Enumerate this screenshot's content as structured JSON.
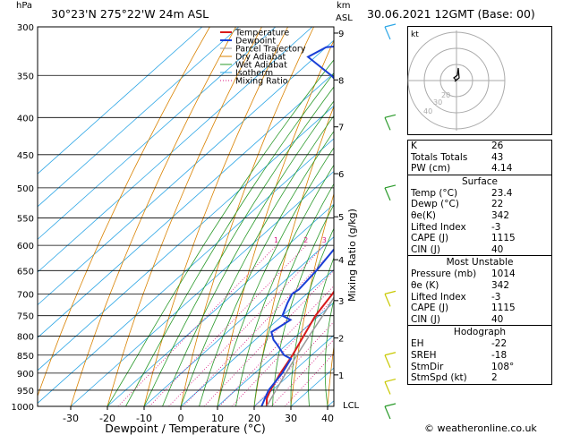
{
  "header": {
    "hpa_label": "hPa",
    "location": "30°23'N 275°22'W 24m ASL",
    "km_label": "km",
    "asl_label": "ASL",
    "datetime": "30.06.2021 12GMT (Base: 00)"
  },
  "chart_data": {
    "type": "line",
    "title": "Skew-T log-P diagram",
    "xlabel": "Dewpoint / Temperature (°C)",
    "ylabel": "hPa",
    "x_ticks": [
      -30,
      -20,
      -10,
      0,
      10,
      20,
      30,
      40
    ],
    "pressure_levels": [
      300,
      350,
      400,
      450,
      500,
      550,
      600,
      650,
      700,
      750,
      800,
      850,
      900,
      950,
      1000
    ],
    "km_ticks": [
      {
        "km": "1",
        "p": 905
      },
      {
        "km": "2",
        "p": 805
      },
      {
        "km": "3",
        "p": 715
      },
      {
        "km": "4",
        "p": 628
      },
      {
        "km": "5",
        "p": 548
      },
      {
        "km": "6",
        "p": 478
      },
      {
        "km": "7",
        "p": 412
      },
      {
        "km": "8",
        "p": 355
      },
      {
        "km": "9",
        "p": 306
      }
    ],
    "lcl_label": "LCL",
    "lcl_pressure": 1000,
    "mixing_ratio_label": "Mixing Ratio (g/kg)",
    "mixing_ratios": [
      "1",
      "2",
      "3",
      "4",
      "6",
      "8",
      "10",
      "15",
      "20",
      "25"
    ],
    "legend": [
      "Temperature",
      "Dewpoint",
      "Parcel Trajectory",
      "Dry Adiabat",
      "Wet Adiabat",
      "Isotherm",
      "Mixing Ratio"
    ],
    "legend_colors": [
      "#d81b1b",
      "#1a3fd6",
      "#999999",
      "#d98200",
      "#2a9a2a",
      "#2fa7e6",
      "#d8147e"
    ],
    "series": [
      {
        "name": "Temperature",
        "color": "#d81b1b",
        "points": [
          [
            1000,
            23.4
          ],
          [
            975,
            21.0
          ],
          [
            950,
            19.5
          ],
          [
            900,
            17.0
          ],
          [
            850,
            14.8
          ],
          [
            800,
            12.0
          ],
          [
            750,
            9.0
          ],
          [
            700,
            7.0
          ],
          [
            650,
            4.0
          ],
          [
            600,
            1.0
          ],
          [
            550,
            -3.5
          ],
          [
            500,
            -7.5
          ],
          [
            450,
            -12.0
          ],
          [
            400,
            -18.5
          ],
          [
            350,
            -25.5
          ],
          [
            300,
            -33.5
          ]
        ]
      },
      {
        "name": "Dewpoint",
        "color": "#1a3fd6",
        "points": [
          [
            1000,
            22.0
          ],
          [
            975,
            20.5
          ],
          [
            950,
            19.0
          ],
          [
            900,
            17.5
          ],
          [
            860,
            15.5
          ],
          [
            850,
            12.5
          ],
          [
            820,
            7.0
          ],
          [
            810,
            5.0
          ],
          [
            790,
            2.0
          ],
          [
            760,
            3.5
          ],
          [
            750,
            0.0
          ],
          [
            720,
            -2.5
          ],
          [
            700,
            -4.0
          ],
          [
            690,
            -3.5
          ],
          [
            650,
            -4.5
          ],
          [
            600,
            -6.5
          ],
          [
            550,
            -11.0
          ],
          [
            500,
            -16.0
          ],
          [
            450,
            -22.0
          ],
          [
            400,
            -29.0
          ],
          [
            380,
            -33.0
          ],
          [
            370,
            -50.0
          ],
          [
            350,
            -60.0
          ],
          [
            330,
            -72.0
          ],
          [
            320,
            -70.0
          ],
          [
            315,
            -55.0
          ],
          [
            300,
            -62.0
          ]
        ]
      },
      {
        "name": "Parcel Trajectory",
        "color": "#999999",
        "points": [
          [
            1000,
            23.4
          ],
          [
            950,
            21.0
          ],
          [
            900,
            18.5
          ],
          [
            850,
            16.0
          ],
          [
            800,
            13.5
          ],
          [
            750,
            11.0
          ],
          [
            700,
            8.0
          ],
          [
            650,
            5.0
          ],
          [
            600,
            2.0
          ],
          [
            550,
            -1.5
          ],
          [
            500,
            -5.0
          ],
          [
            450,
            -9.5
          ],
          [
            400,
            -15.0
          ],
          [
            350,
            -22.0
          ],
          [
            300,
            -30.0
          ]
        ]
      }
    ],
    "wind_barb_colors": [
      "#2fa7e6",
      "#2a9a2a",
      "#c8c800"
    ]
  },
  "hodograph": {
    "unit_label": "kt",
    "ring_labels": [
      "40",
      "30",
      "20"
    ]
  },
  "indices": {
    "rows": [
      [
        "K",
        "26"
      ],
      [
        "Totals Totals",
        "43"
      ],
      [
        "PW (cm)",
        "4.14"
      ]
    ]
  },
  "surface": {
    "title": "Surface",
    "rows": [
      [
        "Temp (°C)",
        "23.4"
      ],
      [
        "Dewp (°C)",
        "22"
      ],
      [
        "θe(K)",
        "342"
      ],
      [
        "Lifted Index",
        "-3"
      ],
      [
        "CAPE (J)",
        "1115"
      ],
      [
        "CIN (J)",
        "40"
      ]
    ]
  },
  "most_unstable": {
    "title": "Most Unstable",
    "rows": [
      [
        "Pressure (mb)",
        "1014"
      ],
      [
        "θe (K)",
        "342"
      ],
      [
        "Lifted Index",
        "-3"
      ],
      [
        "CAPE (J)",
        "1115"
      ],
      [
        "CIN (J)",
        "40"
      ]
    ]
  },
  "hodograph_table": {
    "title": "Hodograph",
    "rows": [
      [
        "EH",
        "-22"
      ],
      [
        "SREH",
        "-18"
      ],
      [
        "StmDir",
        "108°"
      ],
      [
        "StmSpd (kt)",
        "2"
      ]
    ]
  },
  "footer": {
    "copyright": "© weatheronline.co.uk"
  }
}
